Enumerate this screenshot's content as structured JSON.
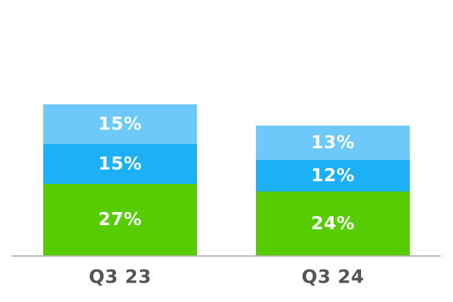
{
  "chart_data": {
    "type": "bar",
    "subtype": "stacked-vertical",
    "title": "",
    "categories": [
      "Q3 23",
      "Q3 24"
    ],
    "series": [
      {
        "name": "green-bottom-segment",
        "color": "#58CC02",
        "values": [
          27,
          24
        ],
        "labels": [
          "27%",
          "24%"
        ]
      },
      {
        "name": "blue-middle-segment",
        "color": "#1CB0F6",
        "values": [
          15,
          12
        ],
        "labels": [
          "15%",
          "12%"
        ]
      },
      {
        "name": "light-blue-top-segment",
        "color": "#6EC9FB",
        "values": [
          15,
          13
        ],
        "labels": [
          "15%",
          "13%"
        ]
      }
    ],
    "totals": [
      57,
      49
    ],
    "value_unit": "%",
    "legend": "none",
    "grid": false,
    "data_labels": "inside-center-white",
    "axis_line_color": "#B3B3B3",
    "category_label_color": "#55565A",
    "segment_label_color": "#FFFFFF",
    "background_color": "#FFFFFF"
  }
}
